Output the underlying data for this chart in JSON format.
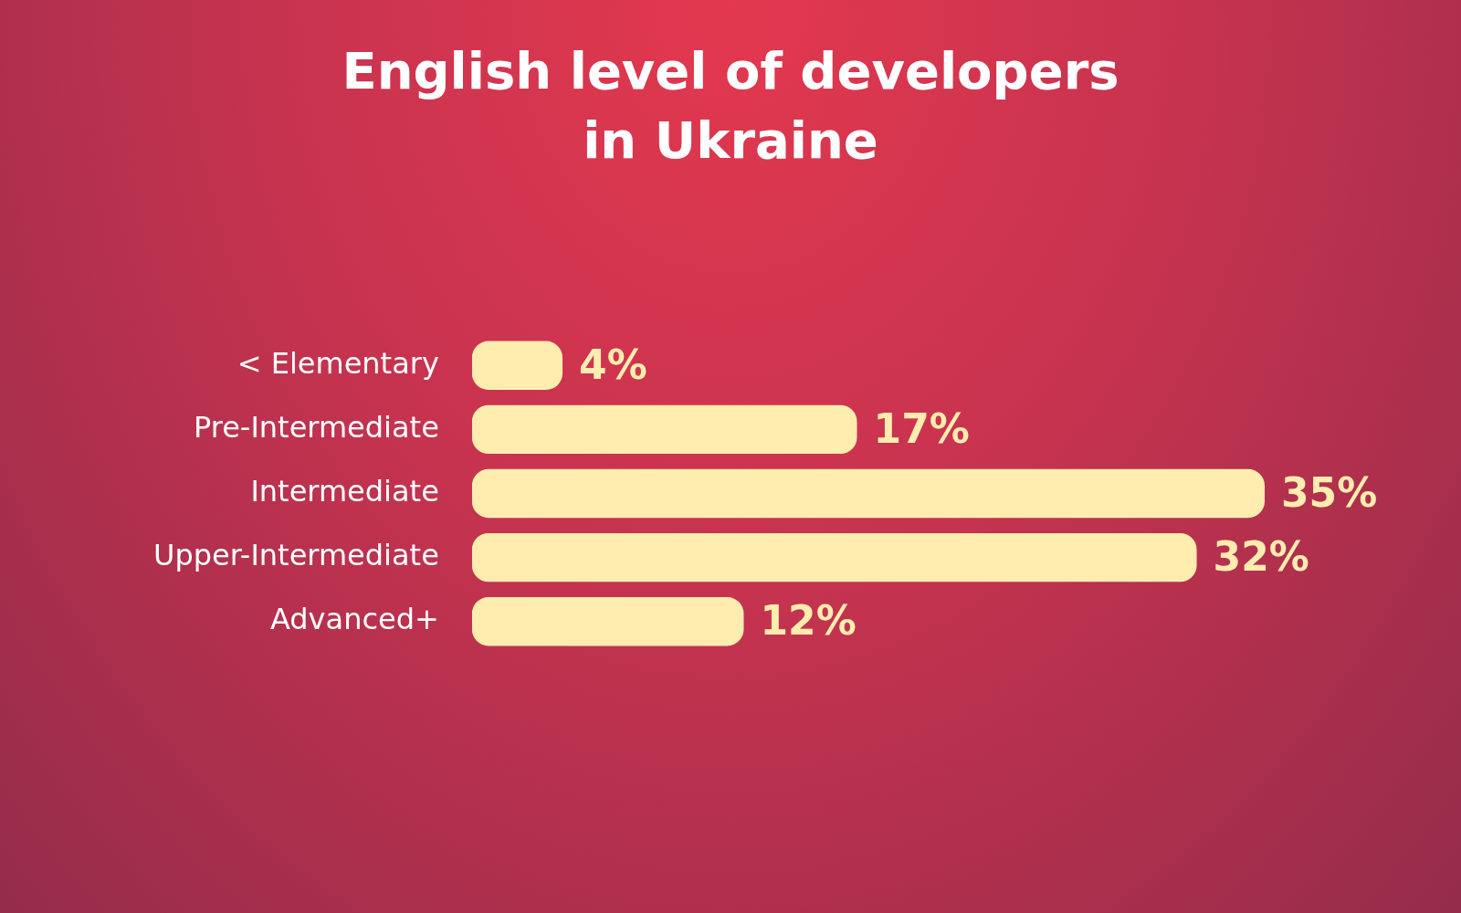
{
  "chart_data": {
    "type": "bar",
    "title": "English level of developers\nin Ukraine",
    "orientation": "horizontal",
    "categories": [
      "< Elementary",
      "Pre-Intermediate",
      "Intermediate",
      "Upper-Intermediate",
      "Advanced+"
    ],
    "values": [
      4,
      17,
      35,
      32,
      12
    ],
    "value_labels": [
      "4%",
      "17%",
      "35%",
      "32%",
      "12%"
    ],
    "color": "#ffedb0",
    "legend": false,
    "tick_labels": "y"
  }
}
